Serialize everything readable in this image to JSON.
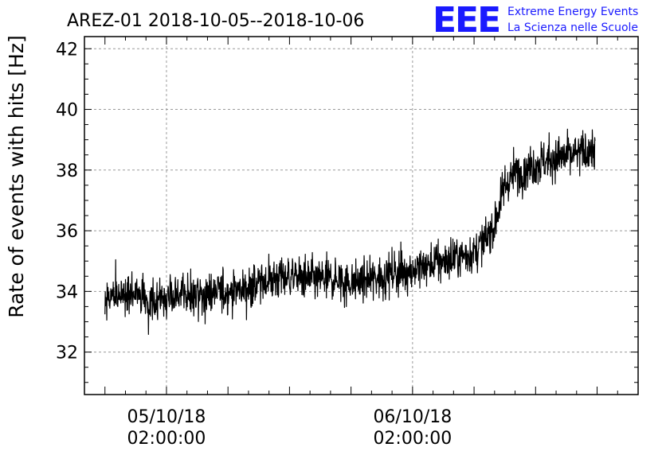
{
  "chart_data": {
    "type": "line",
    "title": "AREZ-01 2018-10-05--2018-10-06",
    "xlabel": "",
    "ylabel": "Rate of events with hits [Hz]",
    "ylim": [
      30.6,
      42.4
    ],
    "yticks": [
      32,
      34,
      36,
      38,
      40,
      42
    ],
    "xlim_hours_from_2018-10-05T00:00": [
      -6.0,
      48.0
    ],
    "xticks": [
      {
        "hour": 2,
        "label_date": "05/10/18",
        "label_time": "02:00:00"
      },
      {
        "hour": 26,
        "label_date": "06/10/18",
        "label_time": "02:00:00"
      }
    ],
    "grid": true,
    "series": [
      {
        "name": "rate",
        "color": "#000000",
        "x_hours": [
          -4,
          -2,
          0,
          2,
          4,
          6,
          8,
          10,
          12,
          14,
          16,
          18,
          20,
          22,
          24,
          26,
          28,
          30,
          32,
          33,
          34,
          35,
          36,
          38,
          40,
          42,
          43.8
        ],
        "y_mean": [
          33.8,
          33.9,
          33.7,
          33.8,
          33.9,
          33.9,
          34.0,
          34.1,
          34.4,
          34.5,
          34.4,
          34.4,
          34.3,
          34.4,
          34.6,
          34.7,
          34.9,
          35.1,
          35.3,
          35.6,
          36.2,
          37.5,
          37.9,
          38.2,
          38.4,
          38.5,
          38.7
        ]
      }
    ]
  },
  "logo": {
    "mark": "EEE",
    "line1": "Extreme Energy Events",
    "line2": "La Scienza nelle Scuole",
    "color": "#1a1aff"
  }
}
